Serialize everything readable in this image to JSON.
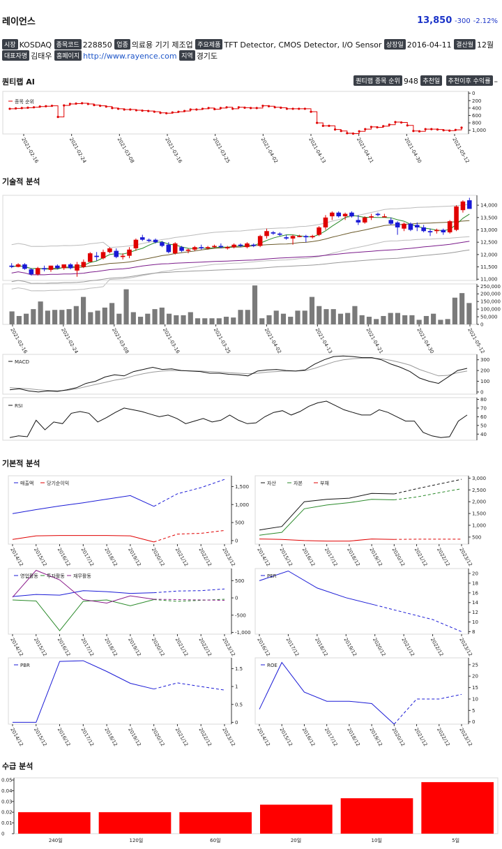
{
  "header": {
    "name": "레이언스",
    "price": "13,850",
    "change": "-300",
    "pct": "-2.12%"
  },
  "info1": [
    {
      "label": "시장",
      "value": "KOSDAQ"
    },
    {
      "label": "종목코드",
      "value": "228850"
    },
    {
      "label": "업종",
      "value": "의료용 기기 제조업"
    },
    {
      "label": "주요제품",
      "value": "TFT Detector, CMOS Detector, I/O Sensor"
    },
    {
      "label": "상장일",
      "value": "2016-04-11"
    },
    {
      "label": "결산월",
      "value": "12월"
    }
  ],
  "info2": {
    "ceo_label": "대표자명",
    "ceo": "김태우",
    "home_label": "홈페이지",
    "home": "http://www.rayence.com",
    "region_label": "지역",
    "region": "경기도"
  },
  "sections": {
    "quant": "퀀티랩 AI",
    "tech": "기술적 분석",
    "fund": "기본적 분석",
    "supply": "수급 분석"
  },
  "quant": {
    "rank_label": "퀀티랩 종목 순위",
    "rank": "948",
    "rec_label": "추천일",
    "since_label": "추천이후 수익률",
    "since": "–",
    "legend": "종목 순위"
  },
  "colors": {
    "up": "#e00000",
    "down": "#1a1ad6",
    "accent": "#1a33c8"
  },
  "dates": [
    "2021-02-16",
    "2021-02-24",
    "2021-03-08",
    "2021-03-16",
    "2021-03-25",
    "2021-04-02",
    "2021-04-13",
    "2021-04-21",
    "2021-04-30",
    "2021-05-12"
  ],
  "chart_data": [
    {
      "id": "rank",
      "type": "line",
      "x_ticks": [
        "2021-02-16",
        "2021-02-24",
        "2021-03-08",
        "2021-03-16",
        "2021-03-25",
        "2021-04-02",
        "2021-04-13",
        "2021-04-21",
        "2021-04-30",
        "2021-05-12"
      ],
      "y_ticks": [
        "0",
        "200",
        "400",
        "600",
        "800",
        "1,000"
      ],
      "ylim": [
        -50,
        1100
      ],
      "reversed": true,
      "series": [
        {
          "name": "종목 순위"
        }
      ],
      "values": [
        420,
        410,
        400,
        390,
        380,
        360,
        350,
        340,
        640,
        330,
        290,
        280,
        270,
        290,
        320,
        340,
        360,
        400,
        420,
        440,
        440,
        460,
        470,
        480,
        500,
        530,
        540,
        520,
        500,
        480,
        440,
        440,
        420,
        400,
        430,
        400,
        380,
        420,
        380,
        390,
        400,
        400,
        340,
        350,
        380,
        390,
        420,
        420,
        420,
        420,
        500,
        800,
        880,
        880,
        980,
        1020,
        1080,
        1090,
        1030,
        970,
        910,
        920,
        890,
        850,
        780,
        790,
        870,
        1020,
        1030,
        970,
        970,
        980,
        1000,
        1010,
        990,
        930
      ]
    },
    {
      "id": "candle",
      "type": "line",
      "y_ticks": [
        "11,000",
        "11,500",
        "12,000",
        "12,500",
        "13,000",
        "13,500",
        "14,000"
      ],
      "ylim": [
        10950,
        14400
      ],
      "ohlc": [
        [
          11550,
          11650,
          11450,
          11500
        ],
        [
          11500,
          11650,
          11480,
          11600
        ],
        [
          11600,
          11650,
          11380,
          11420
        ],
        [
          11400,
          11450,
          11150,
          11200
        ],
        [
          11200,
          11500,
          11150,
          11450
        ],
        [
          11450,
          11550,
          11320,
          11400
        ],
        [
          11380,
          11550,
          11300,
          11550
        ],
        [
          11550,
          11600,
          11400,
          11450
        ],
        [
          11450,
          11600,
          11380,
          11600
        ],
        [
          11600,
          11650,
          11400,
          11450
        ],
        [
          11350,
          11700,
          11100,
          11600
        ],
        [
          11500,
          11800,
          11450,
          11700
        ],
        [
          11700,
          12100,
          11700,
          12050
        ],
        [
          11950,
          12100,
          11750,
          11900
        ],
        [
          11850,
          12200,
          11800,
          12100
        ],
        [
          12100,
          12300,
          12050,
          12250
        ],
        [
          12150,
          12250,
          11850,
          11900
        ],
        [
          11900,
          12050,
          11800,
          11950
        ],
        [
          11950,
          12300,
          11850,
          12200
        ],
        [
          12250,
          12650,
          12150,
          12600
        ],
        [
          12700,
          12800,
          12550,
          12600
        ],
        [
          12600,
          12650,
          12500,
          12550
        ],
        [
          12600,
          12650,
          12450,
          12500
        ],
        [
          12500,
          12550,
          12300,
          12350
        ],
        [
          12400,
          12500,
          12050,
          12100
        ],
        [
          12050,
          12500,
          12000,
          12450
        ],
        [
          12300,
          12350,
          12100,
          12150
        ],
        [
          12150,
          12250,
          12050,
          12200
        ],
        [
          12200,
          12350,
          12150,
          12300
        ],
        [
          12300,
          12400,
          12200,
          12250
        ],
        [
          12250,
          12350,
          12200,
          12300
        ],
        [
          12300,
          12400,
          12250,
          12350
        ],
        [
          12350,
          12450,
          12250,
          12300
        ],
        [
          12250,
          12350,
          12200,
          12300
        ],
        [
          12300,
          12450,
          12250,
          12400
        ],
        [
          12400,
          12450,
          12300,
          12350
        ],
        [
          12300,
          12500,
          12250,
          12450
        ],
        [
          12400,
          12450,
          12300,
          12350
        ],
        [
          12350,
          12800,
          12300,
          12750
        ],
        [
          12750,
          13050,
          12650,
          12950
        ],
        [
          12900,
          12950,
          12800,
          12850
        ],
        [
          12850,
          12900,
          12750,
          12800
        ],
        [
          12700,
          12800,
          12600,
          12650
        ],
        [
          12650,
          12800,
          12400,
          12750
        ],
        [
          12750,
          12800,
          12700,
          12750
        ],
        [
          12750,
          12800,
          12500,
          12700
        ],
        [
          12700,
          12800,
          12650,
          12750
        ],
        [
          12800,
          13150,
          12750,
          13100
        ],
        [
          13100,
          13600,
          13000,
          13500
        ],
        [
          13550,
          13750,
          13400,
          13700
        ],
        [
          13700,
          13750,
          13500,
          13550
        ],
        [
          13550,
          13700,
          13400,
          13650
        ],
        [
          13700,
          13750,
          13500,
          13550
        ],
        [
          13400,
          13600,
          13200,
          13300
        ],
        [
          13300,
          13550,
          13250,
          13500
        ],
        [
          13500,
          13650,
          13400,
          13550
        ],
        [
          13650,
          13700,
          13550,
          13600
        ],
        [
          13550,
          13650,
          13500,
          13550
        ],
        [
          13400,
          13500,
          13200,
          13250
        ],
        [
          13300,
          13350,
          12800,
          13100
        ],
        [
          13050,
          13300,
          12950,
          13250
        ],
        [
          13250,
          13300,
          12950,
          13000
        ],
        [
          13200,
          13300,
          12950,
          13100
        ],
        [
          13100,
          13200,
          12900,
          12950
        ],
        [
          12950,
          13050,
          12750,
          12900
        ],
        [
          12950,
          13050,
          12850,
          13000
        ],
        [
          13000,
          13050,
          12800,
          12900
        ],
        [
          12900,
          13400,
          12850,
          13350
        ],
        [
          13000,
          14000,
          12950,
          13950
        ],
        [
          13800,
          14200,
          13700,
          14150
        ],
        [
          14200,
          14300,
          13850,
          13850
        ]
      ]
    },
    {
      "id": "volume",
      "type": "bar",
      "y_ticks": [
        "0",
        "50,000",
        "100,000",
        "150,000",
        "200,000",
        "250,000"
      ],
      "ylim": [
        0,
        265000
      ],
      "values": [
        85000,
        55000,
        70000,
        100000,
        150000,
        90000,
        95000,
        95000,
        100000,
        120000,
        180000,
        80000,
        90000,
        110000,
        140000,
        70000,
        230000,
        80000,
        50000,
        70000,
        100000,
        110000,
        70000,
        60000,
        60000,
        80000,
        40000,
        40000,
        40000,
        40000,
        50000,
        45000,
        95000,
        95000,
        255000,
        40000,
        60000,
        90000,
        70000,
        50000,
        90000,
        90000,
        180000,
        120000,
        100000,
        100000,
        70000,
        75000,
        120000,
        60000,
        50000,
        35000,
        55000,
        75000,
        75000,
        60000,
        60000,
        30000,
        55000,
        70000,
        30000,
        35000,
        175000,
        205000,
        140000
      ]
    },
    {
      "id": "macd",
      "type": "line",
      "y_ticks": [
        "0",
        "100",
        "200",
        "300"
      ],
      "ylim": [
        -20,
        350
      ],
      "series": [
        {
          "name": "MACD"
        }
      ],
      "macd": [
        20,
        30,
        10,
        0,
        10,
        5,
        20,
        40,
        80,
        100,
        140,
        160,
        150,
        190,
        210,
        230,
        210,
        215,
        200,
        195,
        190,
        175,
        175,
        165,
        160,
        150,
        195,
        205,
        210,
        200,
        195,
        205,
        260,
        300,
        330,
        335,
        330,
        320,
        320,
        300,
        260,
        230,
        190,
        130,
        100,
        80,
        140,
        200,
        220
      ],
      "signal": [
        40,
        35,
        30,
        20,
        15,
        12,
        15,
        30,
        50,
        70,
        90,
        110,
        125,
        150,
        170,
        185,
        195,
        200,
        198,
        197,
        195,
        190,
        185,
        180,
        175,
        170,
        175,
        185,
        190,
        195,
        195,
        198,
        220,
        250,
        280,
        300,
        310,
        315,
        315,
        310,
        295,
        275,
        250,
        210,
        180,
        150,
        155,
        180,
        195
      ]
    },
    {
      "id": "rsi",
      "type": "line",
      "y_ticks": [
        "40",
        "50",
        "60",
        "70",
        "80"
      ],
      "ylim": [
        33,
        82
      ],
      "series": [
        {
          "name": "RSI"
        }
      ],
      "values": [
        36,
        38,
        37,
        56,
        45,
        54,
        52,
        64,
        66,
        64,
        54,
        59,
        65,
        70,
        68,
        66,
        63,
        60,
        62,
        58,
        52,
        55,
        58,
        54,
        56,
        62,
        56,
        52,
        53,
        60,
        65,
        67,
        62,
        66,
        72,
        76,
        78,
        73,
        68,
        65,
        62,
        62,
        68,
        65,
        60,
        55,
        55,
        42,
        38,
        36,
        37,
        55,
        62
      ]
    },
    {
      "id": "income",
      "type": "line",
      "x_ticks": [
        "2014/12",
        "2015/12",
        "2016/12",
        "2017/12",
        "2018/12",
        "2019/12",
        "2020/12",
        "2021/12",
        "2022/12",
        "2023/12"
      ],
      "y_ticks": [
        "0",
        "500",
        "1,000",
        "1,500"
      ],
      "ylim": [
        -100,
        1800
      ],
      "series": [
        {
          "name": "매출액",
          "values": [
            750,
            860,
            960,
            1050,
            1150,
            1250,
            950,
            1300,
            1470,
            1700
          ]
        },
        {
          "name": "당기순이익",
          "values": [
            30,
            130,
            140,
            140,
            140,
            130,
            -40,
            180,
            200,
            280
          ]
        }
      ],
      "projected_from": 6
    },
    {
      "id": "balance",
      "type": "line",
      "x_ticks": [
        "2014/12",
        "2015/12",
        "2016/12",
        "2017/12",
        "2018/12",
        "2019/12",
        "2020/12",
        "2021/12",
        "2022/12",
        "2023/12"
      ],
      "y_ticks": [
        "500",
        "1,000",
        "1,500",
        "2,000",
        "2,500",
        "3,000"
      ],
      "ylim": [
        200,
        3100
      ],
      "series": [
        {
          "name": "자산",
          "values": [
            800,
            950,
            2000,
            2100,
            2150,
            2350,
            2330,
            2550,
            2750,
            2950
          ]
        },
        {
          "name": "자본",
          "values": [
            580,
            700,
            1700,
            1860,
            1960,
            2100,
            2080,
            2200,
            2380,
            2550
          ]
        },
        {
          "name": "부채",
          "values": [
            420,
            400,
            350,
            330,
            330,
            420,
            400,
            410,
            410,
            410
          ]
        }
      ],
      "projected_from": 6
    },
    {
      "id": "cashflow",
      "type": "line",
      "x_ticks": [
        "2014/12",
        "2015/12",
        "2016/12",
        "2017/12",
        "2018/12",
        "2019/12",
        "2020/12",
        "2021/12",
        "2022/12",
        "2023/12"
      ],
      "y_ticks": [
        "-1,000",
        "-500",
        "0",
        "500"
      ],
      "ylim": [
        -1050,
        850
      ],
      "series": [
        {
          "name": "영업활동",
          "values": [
            40,
            100,
            80,
            210,
            180,
            130,
            150,
            200,
            210,
            260
          ]
        },
        {
          "name": "투자활동",
          "values": [
            -60,
            -90,
            -950,
            -100,
            -60,
            -230,
            -50,
            -100,
            -70,
            -40
          ]
        },
        {
          "name": "재무활동",
          "values": [
            20,
            800,
            520,
            -50,
            -150,
            60,
            -40,
            -50,
            -60,
            -70
          ]
        }
      ],
      "projected_from": 6
    },
    {
      "id": "per",
      "type": "line",
      "x_ticks": [
        "2016/12",
        "2017/12",
        "2018/12",
        "2019/12",
        "2020/12",
        "2021/12",
        "2022/12",
        "2023/12"
      ],
      "y_ticks": [
        "8",
        "10",
        "12",
        "14",
        "16",
        "18",
        "20"
      ],
      "ylim": [
        7.5,
        21
      ],
      "series": [
        {
          "name": "PER",
          "values": [
            18.5,
            20.5,
            17,
            15,
            13.5,
            12,
            10.5,
            8
          ]
        }
      ],
      "projected_from": 4
    },
    {
      "id": "pbr",
      "type": "line",
      "x_ticks": [
        "2014/12",
        "2015/12",
        "2016/12",
        "2017/12",
        "2018/12",
        "2019/12",
        "2020/12",
        "2021/12",
        "2022/12",
        "2023/12"
      ],
      "y_ticks": [
        "0",
        "0.5",
        "1",
        "1.5"
      ],
      "ylim": [
        -0.05,
        1.8
      ],
      "series": [
        {
          "name": "PBR",
          "values": [
            0,
            0,
            1.7,
            1.72,
            1.42,
            1.09,
            0.93,
            1.1,
            1,
            0.9
          ]
        }
      ],
      "projected_from": 6
    },
    {
      "id": "roe",
      "type": "line",
      "x_ticks": [
        "2014/12",
        "2015/12",
        "2016/12",
        "2017/12",
        "2018/12",
        "2019/12",
        "2020/12",
        "2021/12",
        "2022/12",
        "2023/12"
      ],
      "y_ticks": [
        "0",
        "5",
        "10",
        "15",
        "20",
        "25"
      ],
      "ylim": [
        -1,
        28
      ],
      "series": [
        {
          "name": "ROE",
          "values": [
            5.5,
            26,
            13,
            9,
            9,
            8,
            -1,
            10,
            10,
            12
          ]
        }
      ],
      "projected_from": 6
    },
    {
      "id": "supply",
      "type": "bar",
      "categories": [
        "240일",
        "120일",
        "60일",
        "20일",
        "10일",
        "5일"
      ],
      "values": [
        0.02,
        0.02,
        0.02,
        0.027,
        0.033,
        0.048
      ],
      "y_ticks": [
        "0",
        "0.01",
        "0.02",
        "0.03",
        "0.04",
        "0.05"
      ],
      "ylim": [
        0,
        0.052
      ]
    }
  ]
}
